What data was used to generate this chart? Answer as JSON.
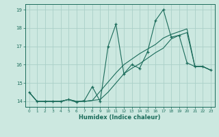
{
  "title": "",
  "xlabel": "Humidex (Indice chaleur)",
  "xlim": [
    -0.5,
    23.5
  ],
  "ylim": [
    13.7,
    19.3
  ],
  "yticks": [
    14,
    15,
    16,
    17,
    18,
    19
  ],
  "xticks": [
    0,
    1,
    2,
    3,
    4,
    5,
    6,
    7,
    8,
    9,
    10,
    11,
    12,
    13,
    14,
    15,
    16,
    17,
    18,
    19,
    20,
    21,
    22,
    23
  ],
  "bg_color": "#cce8e0",
  "grid_color": "#aacfc8",
  "line_color": "#1a6b5a",
  "series1_x": [
    0,
    1,
    2,
    3,
    4,
    5,
    6,
    7,
    8,
    9,
    10,
    11,
    12,
    13,
    14,
    15,
    16,
    17,
    18,
    19,
    20,
    21,
    22,
    23
  ],
  "series1_y": [
    14.5,
    14.0,
    14.0,
    14.0,
    14.0,
    14.1,
    13.95,
    14.05,
    14.8,
    14.0,
    17.0,
    18.2,
    15.5,
    16.0,
    15.8,
    16.7,
    18.4,
    19.0,
    17.5,
    17.6,
    16.1,
    15.9,
    15.9,
    15.7
  ],
  "series2_x": [
    0,
    1,
    2,
    3,
    4,
    5,
    6,
    7,
    8,
    9,
    10,
    11,
    12,
    13,
    14,
    15,
    16,
    17,
    18,
    19,
    20,
    21,
    22,
    23
  ],
  "series2_y": [
    14.5,
    14.0,
    14.0,
    14.0,
    14.0,
    14.1,
    14.0,
    14.0,
    14.05,
    14.1,
    14.5,
    15.0,
    15.5,
    15.8,
    16.05,
    16.35,
    16.65,
    16.9,
    17.4,
    17.6,
    17.75,
    15.9,
    15.9,
    15.7
  ],
  "series3_x": [
    0,
    1,
    2,
    3,
    4,
    5,
    6,
    7,
    8,
    9,
    10,
    11,
    12,
    13,
    14,
    15,
    16,
    17,
    18,
    19,
    20,
    21,
    22,
    23
  ],
  "series3_y": [
    14.5,
    14.0,
    14.0,
    14.0,
    14.0,
    14.1,
    14.0,
    14.0,
    14.05,
    14.55,
    15.05,
    15.55,
    16.0,
    16.3,
    16.6,
    16.85,
    17.1,
    17.45,
    17.65,
    17.8,
    17.95,
    15.9,
    15.9,
    15.7
  ]
}
